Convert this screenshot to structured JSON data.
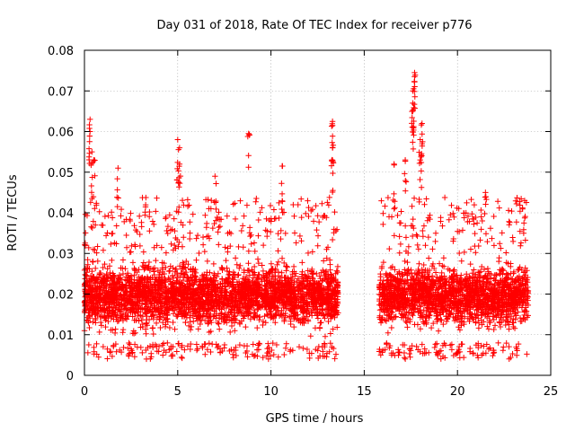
{
  "chart_data": {
    "type": "scatter",
    "title": "Day 031 of 2018, Rate Of TEC Index for receiver p776",
    "xlabel": "GPS time / hours",
    "ylabel": "ROTI / TECUs",
    "xlim": [
      0,
      25
    ],
    "ylim": [
      0,
      0.08
    ],
    "x_ticks": [
      0,
      5,
      10,
      15,
      20,
      25
    ],
    "x_tick_labels": [
      "0",
      "5",
      "10",
      "15",
      "20",
      "25"
    ],
    "y_ticks": [
      0,
      0.01,
      0.02,
      0.03,
      0.04,
      0.05,
      0.06,
      0.07,
      0.08
    ],
    "y_tick_labels": [
      "0",
      "0.01",
      "0.02",
      "0.03",
      "0.04",
      "0.05",
      "0.06",
      "0.07",
      "0.08"
    ],
    "grid": true,
    "marker": "+",
    "color": "#ff0000",
    "series": [
      {
        "name": "ROTI",
        "segments": [
          {
            "x_start": 0.0,
            "x_end": 13.6,
            "typical_low": 0.008,
            "typical_high": 0.03
          },
          {
            "x_start": 15.8,
            "x_end": 23.8,
            "typical_low": 0.008,
            "typical_high": 0.03
          }
        ],
        "gap": [
          13.6,
          15.8
        ],
        "peaks": [
          {
            "x": 0.3,
            "y": 0.063
          },
          {
            "x": 0.3,
            "y": 0.06
          },
          {
            "x": 0.4,
            "y": 0.055
          },
          {
            "x": 0.5,
            "y": 0.053
          },
          {
            "x": 1.8,
            "y": 0.051
          },
          {
            "x": 5.0,
            "y": 0.058
          },
          {
            "x": 5.1,
            "y": 0.056
          },
          {
            "x": 5.1,
            "y": 0.052
          },
          {
            "x": 7.0,
            "y": 0.049
          },
          {
            "x": 8.8,
            "y": 0.0595
          },
          {
            "x": 10.6,
            "y": 0.0515
          },
          {
            "x": 13.3,
            "y": 0.0625
          },
          {
            "x": 13.3,
            "y": 0.0615
          },
          {
            "x": 13.3,
            "y": 0.056
          },
          {
            "x": 16.6,
            "y": 0.052
          },
          {
            "x": 17.2,
            "y": 0.053
          },
          {
            "x": 17.7,
            "y": 0.0745
          },
          {
            "x": 17.7,
            "y": 0.0735
          },
          {
            "x": 17.6,
            "y": 0.07
          },
          {
            "x": 17.6,
            "y": 0.067
          },
          {
            "x": 17.6,
            "y": 0.065
          },
          {
            "x": 18.1,
            "y": 0.062
          },
          {
            "x": 18.0,
            "y": 0.058
          },
          {
            "x": 18.1,
            "y": 0.057
          },
          {
            "x": 21.5,
            "y": 0.045
          },
          {
            "x": 23.6,
            "y": 0.043
          }
        ]
      }
    ]
  }
}
